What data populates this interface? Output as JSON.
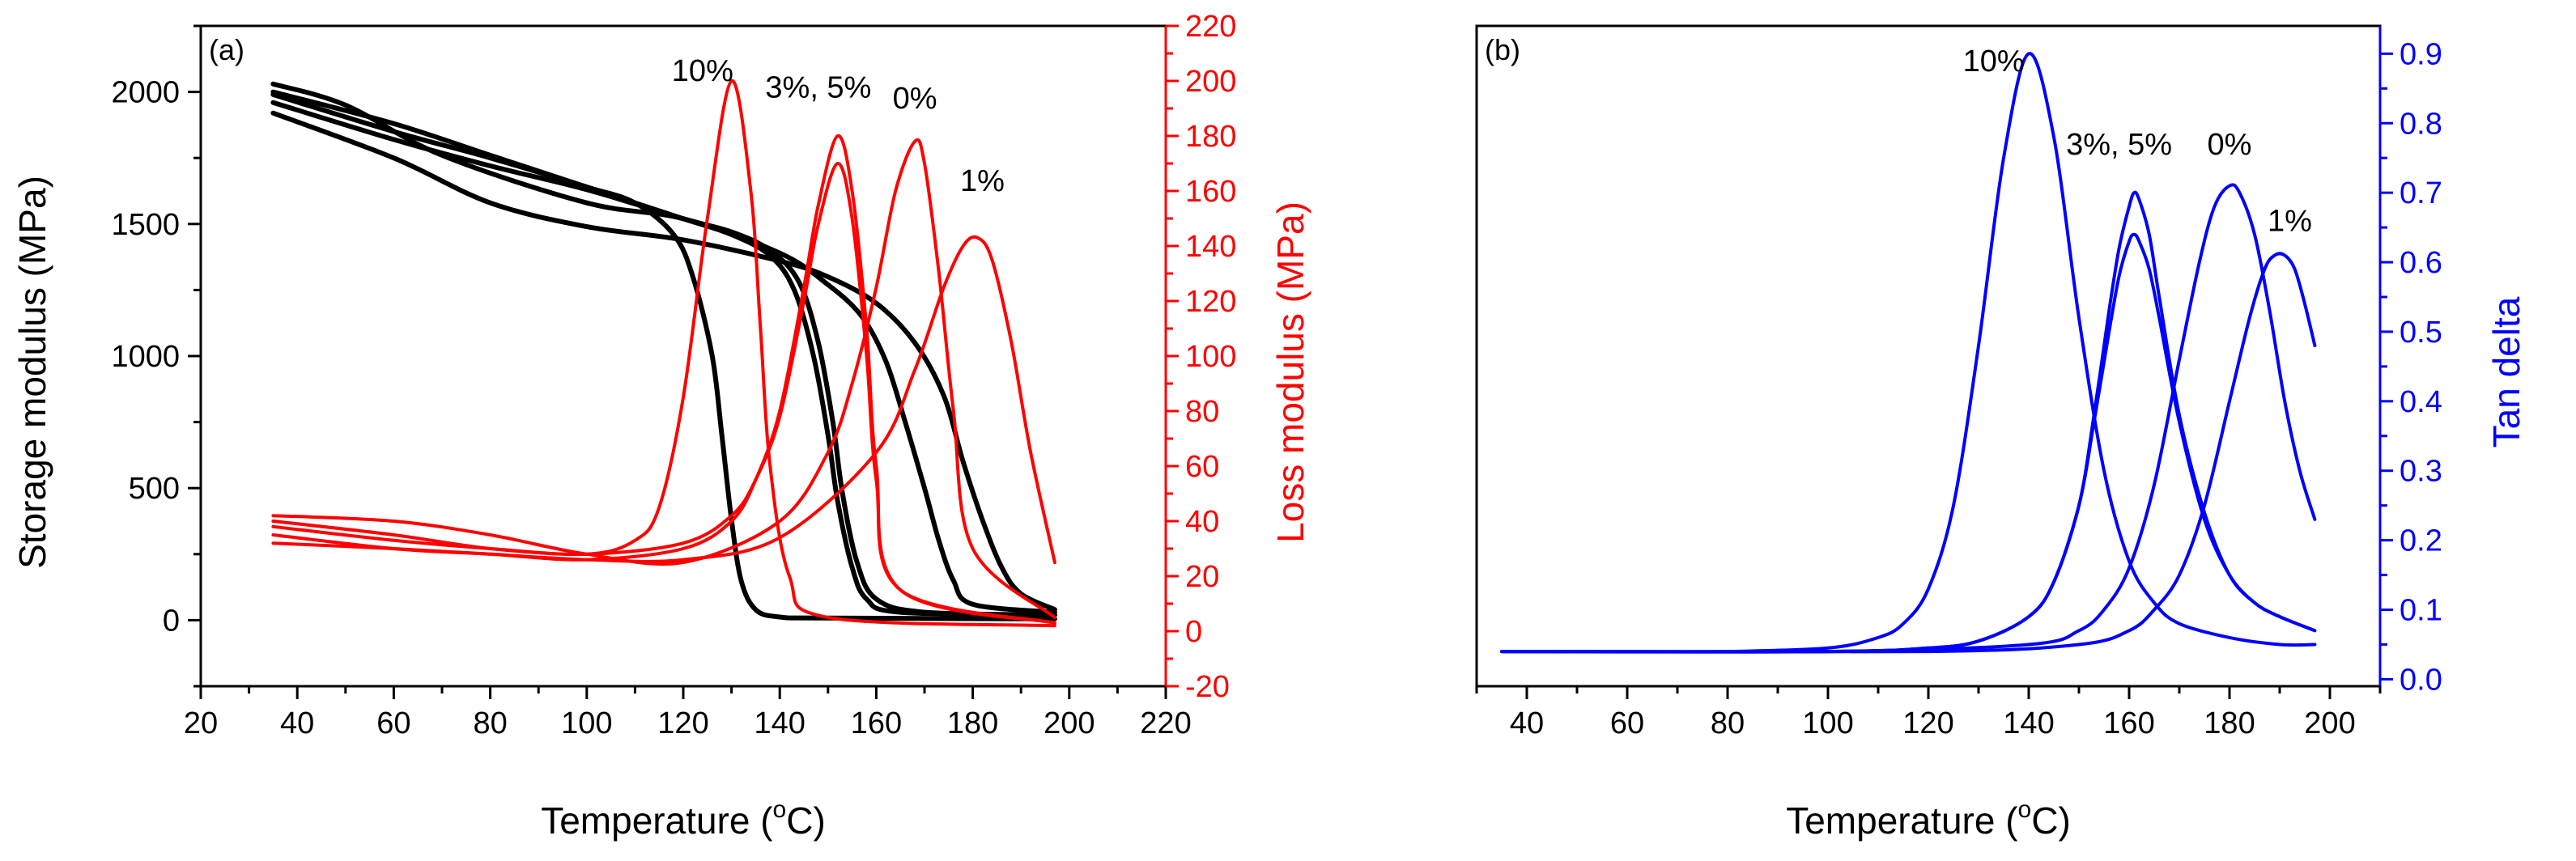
{
  "figure": {
    "panels": [
      "(a)",
      "(b)"
    ]
  },
  "chart_data": [
    {
      "type": "line",
      "panel_label": "(a)",
      "xlabel": "Temperature (°C)",
      "xlabel_parts": [
        "Temperature (",
        "o",
        "C)"
      ],
      "xlim": [
        20,
        220
      ],
      "xticks": [
        20,
        40,
        60,
        80,
        100,
        120,
        140,
        160,
        180,
        200,
        220
      ],
      "ylabel": "Storage modulus (MPa)",
      "ylim": [
        -250,
        2250
      ],
      "yticks": [
        0,
        500,
        1000,
        1500,
        2000
      ],
      "y2label": "Loss modulus (MPa)",
      "y2lim": [
        -20,
        220
      ],
      "y2ticks": [
        -20,
        0,
        20,
        40,
        60,
        80,
        100,
        120,
        140,
        160,
        180,
        200,
        220
      ],
      "colors": {
        "storage": "#000000",
        "loss": "#ff0000"
      },
      "annotations": [
        {
          "text": "10%",
          "x": 124,
          "y2": 200
        },
        {
          "text": "3%, 5%",
          "x": 148,
          "y2": 194
        },
        {
          "text": "0%",
          "x": 168,
          "y2": 190
        },
        {
          "text": "1%",
          "x": 182,
          "y2": 160
        }
      ],
      "series": [
        {
          "name": "Storage 10%",
          "axis": "left",
          "color": "#000000",
          "x": [
            35,
            60,
            80,
            100,
            110,
            118,
            122,
            126,
            128,
            130,
            132,
            135,
            140,
            150,
            197
          ],
          "y": [
            1990,
            1850,
            1750,
            1640,
            1580,
            1460,
            1300,
            1000,
            700,
            380,
            150,
            40,
            12,
            8,
            5
          ]
        },
        {
          "name": "Storage 3%",
          "axis": "left",
          "color": "#000000",
          "x": [
            35,
            60,
            80,
            100,
            120,
            130,
            138,
            143,
            147,
            150,
            152,
            155,
            158,
            165,
            197
          ],
          "y": [
            2000,
            1880,
            1760,
            1640,
            1520,
            1460,
            1380,
            1250,
            1000,
            700,
            450,
            200,
            80,
            30,
            20
          ]
        },
        {
          "name": "Storage 5%",
          "axis": "left",
          "color": "#000000",
          "x": [
            35,
            60,
            80,
            100,
            120,
            130,
            138,
            144,
            148,
            151,
            153,
            156,
            160,
            170,
            197
          ],
          "y": [
            1960,
            1820,
            1720,
            1630,
            1520,
            1470,
            1400,
            1280,
            1050,
            750,
            480,
            220,
            80,
            30,
            20
          ]
        },
        {
          "name": "Storage 0%",
          "axis": "left",
          "color": "#000000",
          "x": [
            35,
            50,
            70,
            100,
            120,
            140,
            150,
            157,
            162,
            166,
            170,
            173,
            176,
            180,
            197
          ],
          "y": [
            2030,
            1950,
            1760,
            1580,
            1520,
            1390,
            1270,
            1150,
            980,
            750,
            500,
            300,
            150,
            60,
            30
          ]
        },
        {
          "name": "Storage 1%",
          "axis": "left",
          "color": "#000000",
          "x": [
            35,
            60,
            80,
            100,
            120,
            140,
            150,
            160,
            168,
            174,
            178,
            182,
            186,
            190,
            197
          ],
          "y": [
            1920,
            1750,
            1580,
            1490,
            1440,
            1360,
            1300,
            1200,
            1050,
            850,
            600,
            380,
            200,
            100,
            40
          ]
        },
        {
          "name": "Loss 10%",
          "axis": "right",
          "color": "#ff0000",
          "x": [
            35,
            60,
            80,
            100,
            110,
            115,
            120,
            125,
            130,
            134,
            136,
            138,
            142,
            150,
            197
          ],
          "y": [
            40,
            35,
            30,
            28,
            33,
            45,
            85,
            150,
            200,
            160,
            110,
            60,
            20,
            5,
            2
          ]
        },
        {
          "name": "Loss 3%",
          "axis": "right",
          "color": "#ff0000",
          "x": [
            35,
            60,
            80,
            100,
            120,
            130,
            135,
            140,
            145,
            148,
            152,
            155,
            158,
            160,
            165,
            197
          ],
          "y": [
            35,
            30,
            28,
            26,
            30,
            40,
            55,
            80,
            125,
            155,
            180,
            160,
            110,
            60,
            15,
            3
          ]
        },
        {
          "name": "Loss 5%",
          "axis": "right",
          "color": "#ff0000",
          "x": [
            35,
            60,
            80,
            100,
            120,
            130,
            135,
            140,
            145,
            148,
            152,
            155,
            158,
            160,
            165,
            197
          ],
          "y": [
            38,
            33,
            30,
            28,
            32,
            42,
            55,
            78,
            120,
            148,
            170,
            150,
            100,
            55,
            15,
            3
          ]
        },
        {
          "name": "Loss 0%",
          "axis": "right",
          "color": "#ff0000",
          "x": [
            35,
            60,
            80,
            100,
            120,
            140,
            150,
            155,
            160,
            164,
            168,
            170,
            173,
            176,
            180,
            197
          ],
          "y": [
            42,
            40,
            35,
            28,
            25,
            40,
            65,
            90,
            125,
            160,
            178,
            170,
            130,
            80,
            30,
            5
          ]
        },
        {
          "name": "Loss 1%",
          "axis": "right",
          "color": "#ff0000",
          "x": [
            35,
            60,
            80,
            100,
            120,
            140,
            160,
            168,
            174,
            178,
            181,
            184,
            188,
            192,
            197
          ],
          "y": [
            32,
            30,
            28,
            26,
            26,
            34,
            65,
            95,
            125,
            140,
            143,
            135,
            105,
            65,
            25
          ]
        }
      ]
    },
    {
      "type": "line",
      "panel_label": "(b)",
      "xlabel": "Temperature (°C)",
      "xlabel_parts": [
        "Temperature (",
        "o",
        "C)"
      ],
      "xlim": [
        30,
        210
      ],
      "xticks": [
        40,
        60,
        80,
        100,
        120,
        140,
        160,
        180,
        200
      ],
      "y2label": "Tan delta",
      "y2lim": [
        -0.01,
        0.94
      ],
      "y2ticks": [
        0.0,
        0.1,
        0.2,
        0.3,
        0.4,
        0.5,
        0.6,
        0.7,
        0.8,
        0.9
      ],
      "colors": {
        "tan_delta": "#0000ff"
      },
      "annotations": [
        {
          "text": "10%",
          "x": 133,
          "y2": 0.875
        },
        {
          "text": "3%, 5%",
          "x": 158,
          "y2": 0.755
        },
        {
          "text": "0%",
          "x": 180,
          "y2": 0.755
        },
        {
          "text": "1%",
          "x": 192,
          "y2": 0.645
        }
      ],
      "series": [
        {
          "name": "Tan delta 10%",
          "axis": "right",
          "color": "#0000ff",
          "x": [
            35,
            60,
            80,
            100,
            110,
            115,
            120,
            125,
            130,
            135,
            140,
            145,
            150,
            155,
            160,
            165,
            170,
            180,
            190,
            197
          ],
          "y": [
            0.04,
            0.04,
            0.04,
            0.045,
            0.06,
            0.08,
            0.13,
            0.25,
            0.48,
            0.75,
            0.9,
            0.78,
            0.52,
            0.3,
            0.17,
            0.11,
            0.08,
            0.06,
            0.05,
            0.05
          ]
        },
        {
          "name": "Tan delta 3%",
          "axis": "right",
          "color": "#0000ff",
          "x": [
            35,
            100,
            120,
            130,
            140,
            145,
            150,
            153,
            156,
            158,
            160,
            161,
            162,
            164,
            166,
            170,
            175,
            180,
            185,
            190,
            197
          ],
          "y": [
            0.04,
            0.04,
            0.045,
            0.055,
            0.09,
            0.14,
            0.25,
            0.38,
            0.53,
            0.62,
            0.68,
            0.7,
            0.69,
            0.64,
            0.55,
            0.38,
            0.24,
            0.15,
            0.11,
            0.09,
            0.07
          ]
        },
        {
          "name": "Tan delta 5%",
          "axis": "right",
          "color": "#0000ff",
          "x": [
            35,
            100,
            120,
            130,
            140,
            145,
            150,
            153,
            156,
            158,
            160,
            161,
            162,
            164,
            166,
            170,
            175,
            180,
            185,
            190,
            197
          ],
          "y": [
            0.04,
            0.04,
            0.045,
            0.055,
            0.09,
            0.14,
            0.25,
            0.37,
            0.5,
            0.58,
            0.63,
            0.64,
            0.63,
            0.59,
            0.52,
            0.37,
            0.23,
            0.15,
            0.11,
            0.09,
            0.07
          ]
        },
        {
          "name": "Tan delta 0%",
          "axis": "right",
          "color": "#0000ff",
          "x": [
            35,
            100,
            140,
            150,
            155,
            160,
            165,
            170,
            174,
            177,
            180,
            182,
            185,
            188,
            191,
            194,
            197
          ],
          "y": [
            0.04,
            0.04,
            0.05,
            0.07,
            0.1,
            0.16,
            0.28,
            0.46,
            0.6,
            0.68,
            0.71,
            0.7,
            0.64,
            0.53,
            0.4,
            0.3,
            0.23
          ]
        },
        {
          "name": "Tan delta 1%",
          "axis": "right",
          "color": "#0000ff",
          "x": [
            35,
            120,
            150,
            160,
            165,
            170,
            175,
            180,
            184,
            187,
            189,
            191,
            193,
            195,
            197
          ],
          "y": [
            0.04,
            0.04,
            0.05,
            0.07,
            0.1,
            0.15,
            0.25,
            0.4,
            0.52,
            0.59,
            0.61,
            0.61,
            0.59,
            0.54,
            0.48
          ]
        }
      ]
    }
  ]
}
